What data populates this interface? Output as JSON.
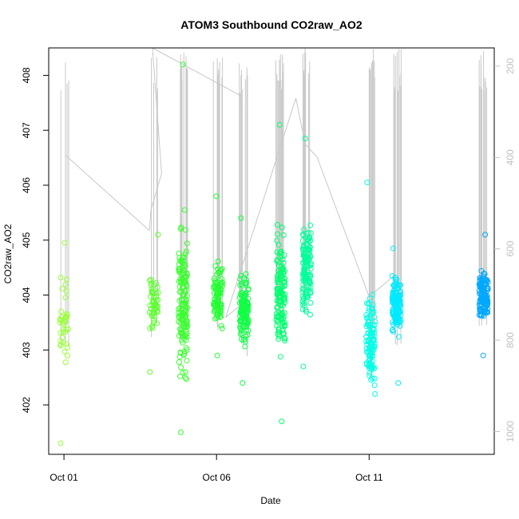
{
  "chart_data": {
    "type": "scatter",
    "title": "ATOM3 Southbound CO2raw_AO2",
    "xlabel": "Date",
    "ylabel": "CO2raw_AO2",
    "x_ticks": [
      "Oct 01",
      "Oct 06",
      "Oct 11"
    ],
    "y_ticks": [
      "402",
      "403",
      "404",
      "405",
      "406",
      "407",
      "408"
    ],
    "y2_ticks": [
      "200",
      "400",
      "600",
      "800",
      "1000"
    ],
    "xlim_days": [
      0.5,
      15.1
    ],
    "ylim": [
      401.1,
      408.5
    ],
    "y2lim": [
      1050,
      160
    ],
    "colors": {
      "points_gradient": [
        "#80ff00",
        "#00ff40",
        "#00ffff",
        "#0080ff"
      ],
      "secondary_line": "#c8c8c8",
      "right_axis": "#c0c0c0"
    },
    "clusters": [
      {
        "date": "Oct 01",
        "day": 1.0,
        "min": 401.3,
        "max": 404.95,
        "center": 403.5,
        "n": 40,
        "color": "#9aff3a"
      },
      {
        "date": "Oct 03",
        "day": 3.95,
        "min": 402.6,
        "max": 405.1,
        "center": 403.8,
        "n": 50,
        "color": "#5cff2e"
      },
      {
        "date": "Oct 04",
        "day": 4.9,
        "min": 401.5,
        "max": 408.2,
        "center": 403.9,
        "n": 150,
        "color": "#3aff2e"
      },
      {
        "date": "Oct 06",
        "day": 6.05,
        "min": 402.9,
        "max": 405.8,
        "center": 404.0,
        "n": 90,
        "color": "#22ff30"
      },
      {
        "date": "Oct 06",
        "day": 6.9,
        "min": 402.4,
        "max": 405.4,
        "center": 403.7,
        "n": 130,
        "color": "#10ff45"
      },
      {
        "date": "Oct 08",
        "day": 8.1,
        "min": 401.7,
        "max": 407.1,
        "center": 404.0,
        "n": 140,
        "color": "#00ff70"
      },
      {
        "date": "Oct 09",
        "day": 8.95,
        "min": 402.7,
        "max": 406.85,
        "center": 404.5,
        "n": 130,
        "color": "#00ff9a"
      },
      {
        "date": "Oct 11",
        "day": 11.05,
        "min": 402.2,
        "max": 406.05,
        "center": 403.2,
        "n": 110,
        "color": "#00ffe6"
      },
      {
        "date": "Oct 12",
        "day": 11.9,
        "min": 402.4,
        "max": 404.85,
        "center": 403.8,
        "n": 140,
        "color": "#00eaff"
      },
      {
        "date": "Oct 14",
        "day": 14.75,
        "min": 402.9,
        "max": 405.1,
        "center": 404.0,
        "n": 130,
        "color": "#00a8ff"
      }
    ],
    "secondary_trace": [
      {
        "day": 1.05,
        "y2": 395
      },
      {
        "day": 3.8,
        "y2": 560
      },
      {
        "day": 3.85,
        "y2": 515
      },
      {
        "day": 4.2,
        "y2": 435
      },
      {
        "day": 3.9,
        "y2": 160
      },
      {
        "day": 6.8,
        "y2": 265
      },
      {
        "day": 6.85,
        "y2": 720
      },
      {
        "day": 6.3,
        "y2": 750
      },
      {
        "day": 8.6,
        "y2": 270
      },
      {
        "day": 8.9,
        "y2": 370
      },
      {
        "day": 9.3,
        "y2": 400
      },
      {
        "day": 11.0,
        "y2": 705
      },
      {
        "day": 11.8,
        "y2": 660
      }
    ],
    "grid": false,
    "legend": "none"
  }
}
